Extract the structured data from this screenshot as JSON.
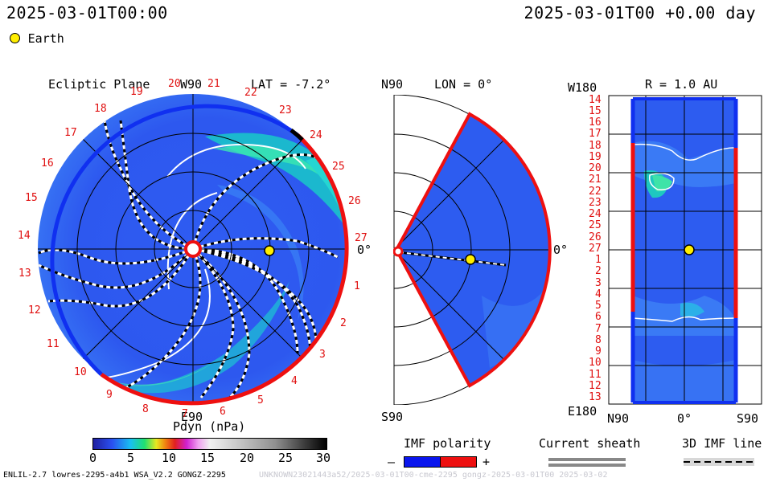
{
  "header": {
    "timestamp_left": "2025-03-01T00:00",
    "timestamp_right": "2025-03-01T00 +0.00 day"
  },
  "legend": {
    "earth_label": "Earth"
  },
  "panels": {
    "ecliptic": {
      "title": "Ecliptic Plane",
      "lat_label": "LAT = -7.2°",
      "top_label": "W90",
      "bottom_label": "E90",
      "right_label": "0°",
      "lon_numbers": [
        "20",
        "21",
        "22",
        "23",
        "24",
        "25",
        "26",
        "27",
        "1",
        "2",
        "3",
        "4",
        "5",
        "6",
        "7",
        "8",
        "9",
        "10",
        "11",
        "12",
        "13",
        "14",
        "15",
        "16",
        "17",
        "18",
        "19"
      ]
    },
    "meridional": {
      "title": "LON = 0°",
      "top_label": "N90",
      "bottom_label": "S90",
      "right_label": "0°"
    },
    "radial": {
      "title": "R = 1.0 AU",
      "top_left_label": "W180",
      "bottom_left_label": "E180",
      "bottom_labels": [
        "N90",
        "0°",
        "S90"
      ],
      "row_numbers": [
        "14",
        "15",
        "16",
        "17",
        "18",
        "19",
        "20",
        "21",
        "22",
        "23",
        "24",
        "25",
        "26",
        "27",
        "1",
        "2",
        "3",
        "4",
        "5",
        "6",
        "7",
        "8",
        "9",
        "10",
        "11",
        "12",
        "13"
      ]
    }
  },
  "colorbar": {
    "title": "Pdyn (nPa)",
    "ticks": [
      "0",
      "5",
      "10",
      "15",
      "20",
      "25",
      "30"
    ]
  },
  "imf": {
    "title": "IMF polarity",
    "minus": "–",
    "plus": "+",
    "negative_color": "#0a16ee",
    "positive_color": "#ee1010"
  },
  "sheath": {
    "title": "Current sheath"
  },
  "imf_line": {
    "title": "3D IMF line"
  },
  "footer": {
    "model_info": "ENLIL-2.7 lowres-2295-a4b1 WSA_V2.2 GONGZ-2295",
    "run_id": "UNKNOWN23021443a52/2025-03-01T00-cme-2295 gongz-2025-03-01T00 2025-03-02"
  },
  "colors": {
    "background_blue": "#2a55f0",
    "boundary_red": "#ee1010",
    "boundary_blue": "#1030f0"
  }
}
